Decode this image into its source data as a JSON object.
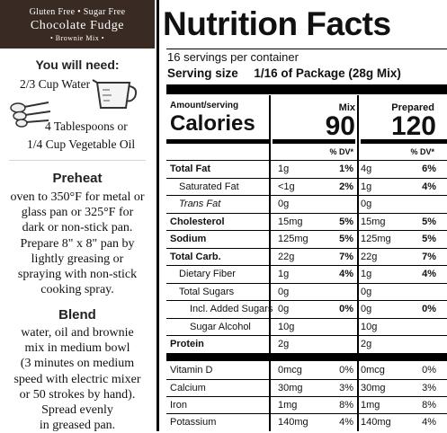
{
  "banner": {
    "line1": "Gluten Free • Sugar Free",
    "line2": "Chocolate Fudge",
    "line3": "• Brownie Mix •"
  },
  "needs": {
    "title": "You will need:",
    "ingredient1": "2/3 Cup Water",
    "ingredient2_line1": "4 Tablespoons or",
    "ingredient2_line2": "1/4 Cup Vegetable Oil",
    "icons": [
      "measuring-cup-icon",
      "measuring-spoons-icon"
    ]
  },
  "steps": [
    {
      "title": "Preheat",
      "body": "oven to 350°F for metal or\nglass pan or 325°F for\ndark or non-stick pan.\nPrepare 8\" x 8\" pan by\nlightly greasing or\nspraying with non-stick\ncooking spray."
    },
    {
      "title": "Blend",
      "body": "water, oil and brownie\nmix in medium bowl\n(3 minutes on medium\nspeed with electric mixer\nor 50 strokes by hand).\nSpread evenly\nin greased pan."
    }
  ],
  "nutrition": {
    "title": "Nutrition Facts",
    "servings": "16 servings per container",
    "serving_size_label": "Serving size",
    "serving_size_value": "1/16 of Package (28g Mix)",
    "amount_per_serving": "Amount/serving",
    "calories_label": "Calories",
    "col_mix": "Mix",
    "col_prepared": "Prepared",
    "calories_mix": "90",
    "calories_prepared": "120",
    "dv_header": "% DV*",
    "rows": [
      {
        "label": "Total Fat",
        "style": "bold",
        "mix_amt": "1g",
        "mix_dv": "1%",
        "prep_amt": "4g",
        "prep_dv": "6%"
      },
      {
        "label": "Saturated Fat",
        "style": "indent",
        "mix_amt": "<1g",
        "mix_dv": "2%",
        "prep_amt": "1g",
        "prep_dv": "4%"
      },
      {
        "label": "Trans Fat",
        "style": "indent-italic",
        "mix_amt": "0g",
        "mix_dv": "",
        "prep_amt": "0g",
        "prep_dv": ""
      },
      {
        "label": "Cholesterol",
        "style": "bold",
        "mix_amt": "15mg",
        "mix_dv": "5%",
        "prep_amt": "15mg",
        "prep_dv": "5%"
      },
      {
        "label": "Sodium",
        "style": "bold",
        "mix_amt": "125mg",
        "mix_dv": "5%",
        "prep_amt": "125mg",
        "prep_dv": "5%"
      },
      {
        "label": "Total Carb.",
        "style": "bold",
        "mix_amt": "22g",
        "mix_dv": "7%",
        "prep_amt": "22g",
        "prep_dv": "7%"
      },
      {
        "label": "Dietary Fiber",
        "style": "indent",
        "mix_amt": "1g",
        "mix_dv": "4%",
        "prep_amt": "1g",
        "prep_dv": "4%"
      },
      {
        "label": "Total Sugars",
        "style": "indent",
        "mix_amt": "0g",
        "mix_dv": "",
        "prep_amt": "0g",
        "prep_dv": ""
      },
      {
        "label": "Incl. Added Sugars",
        "style": "indent2",
        "mix_amt": "0g",
        "mix_dv": "0%",
        "prep_amt": "0g",
        "prep_dv": "0%"
      },
      {
        "label": "Sugar Alcohol",
        "style": "indent2",
        "mix_amt": "10g",
        "mix_dv": "",
        "prep_amt": "10g",
        "prep_dv": ""
      },
      {
        "label": "Protein",
        "style": "bold",
        "mix_amt": "2g",
        "mix_dv": "",
        "prep_amt": "2g",
        "prep_dv": ""
      }
    ],
    "vitamins": [
      {
        "label": "Vitamin D",
        "mix_amt": "0mcg",
        "mix_dv": "0%",
        "prep_amt": "0mcg",
        "prep_dv": "0%"
      },
      {
        "label": "Calcium",
        "mix_amt": "30mg",
        "mix_dv": "3%",
        "prep_amt": "30mg",
        "prep_dv": "3%"
      },
      {
        "label": "Iron",
        "mix_amt": "1mg",
        "mix_dv": "8%",
        "prep_amt": "1mg",
        "prep_dv": "8%"
      },
      {
        "label": "Potassium",
        "mix_amt": "140mg",
        "mix_dv": "4%",
        "prep_amt": "140mg",
        "prep_dv": "4%"
      }
    ]
  },
  "colors": {
    "banner_bg": "#3a2a24",
    "text": "#111111",
    "rule": "#000000"
  }
}
